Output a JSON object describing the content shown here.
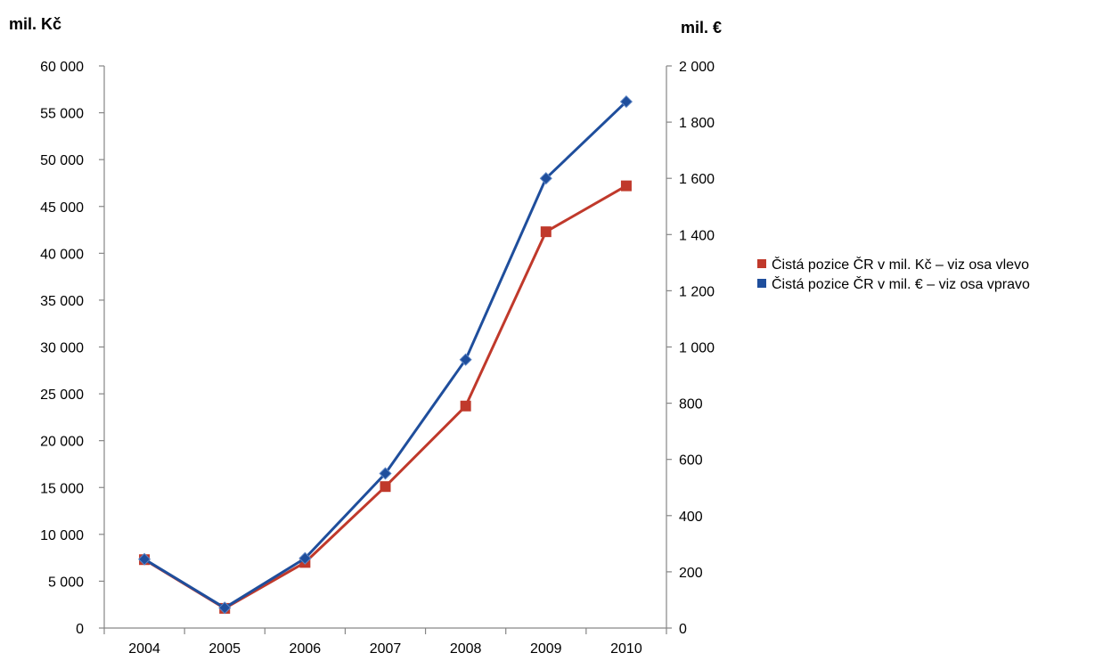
{
  "chart_data": {
    "type": "line",
    "categories": [
      "2004",
      "2005",
      "2006",
      "2007",
      "2008",
      "2009",
      "2010"
    ],
    "left_axis": {
      "unit_label": "mil. Kč",
      "min": 0,
      "max": 60000,
      "step": 5000,
      "tick_labels": [
        "0",
        "5 000",
        "10 000",
        "15 000",
        "20 000",
        "25 000",
        "30 000",
        "35 000",
        "40 000",
        "45 000",
        "50 000",
        "55 000",
        "60 000"
      ]
    },
    "right_axis": {
      "unit_label": "mil. €",
      "min": 0,
      "max": 2000,
      "step": 200,
      "tick_labels": [
        "0",
        "200",
        "400",
        "600",
        "800",
        "1 000",
        "1 200",
        "1 400",
        "1 600",
        "1 800",
        "2 000"
      ]
    },
    "series": [
      {
        "name": "Čistá pozice ČR v mil. Kč – viz osa vlevo",
        "axis": "left",
        "color": "#c0392b",
        "marker": "square",
        "values": [
          7300,
          2100,
          7000,
          15100,
          23700,
          42300,
          47200
        ]
      },
      {
        "name": "Čistá pozice ČR v mil. € – viz osa vpravo",
        "axis": "right",
        "color": "#1f4e9c",
        "marker": "diamond",
        "values": [
          245,
          72,
          248,
          550,
          955,
          1600,
          1873
        ]
      }
    ],
    "legend_position": "right",
    "grid": false
  }
}
